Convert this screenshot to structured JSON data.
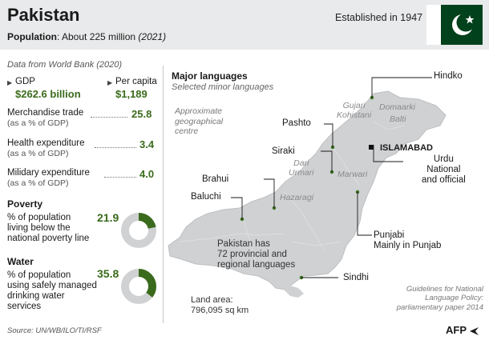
{
  "header": {
    "title": "Pakistan",
    "population_label": "Population",
    "population_value": ": About 225 million",
    "population_year": "(2021)",
    "established": "Established in 1947"
  },
  "stats": {
    "source_note": "Data from World Bank (2020)",
    "gdp_label": "GDP",
    "gdp_value": "$262.6 billion",
    "per_capita_label": "Per capita",
    "per_capita_value": "$1,189",
    "trade_label": "Merchandise trade",
    "trade_sub": "(as a % of GDP)",
    "trade_value": "25.8",
    "health_label": "Health expenditure",
    "health_sub": "(as a % of GDP)",
    "health_value": "3.4",
    "military_label": "Milidary  expenditure",
    "military_sub": "(as a % of GDP)",
    "military_value": "4.0"
  },
  "poverty": {
    "title": "Poverty",
    "line1": "% of population",
    "line2": "living below the",
    "line3": "national poverty line",
    "value": "21.9",
    "fraction": 0.219
  },
  "water": {
    "title": "Water",
    "line1": "% of population",
    "line2": "using safely managed",
    "line3": "drinking water",
    "line4": "services",
    "value": "35.8",
    "fraction": 0.358
  },
  "map": {
    "title": "Major languages",
    "subtitle": "Selected minor languages",
    "geo_centre_1": "Approximate",
    "geo_centre_2": "geographical",
    "geo_centre_3": "centre",
    "hindko": "Hindko",
    "pashto": "Pashto",
    "siraki": "Siraki",
    "islamabad": "ISLAMABAD",
    "urdu_1": "Urdu",
    "urdu_2": "National",
    "urdu_3": "and official",
    "brahui": "Brahui",
    "baluchi": "Baluchi",
    "punjabi_1": "Punjabi",
    "punjabi_2": "Mainly in Punjab",
    "sindhi": "Sindhi",
    "gujari_1": "Gujari",
    "gujari_2": "Kohistani",
    "domaarki": "Domaarki",
    "balti": "Balti",
    "dari_1": "Dari",
    "dari_2": "Urmari",
    "marwari": "Marwari",
    "hazaragi": "Hazaragi",
    "languages_1": "Pakistan has",
    "languages_2": "72 provincial and",
    "languages_3": "regional languages",
    "area_1": "Land area:",
    "area_2": "796,095 sq km",
    "guidelines_1": "Guidelines for  National",
    "guidelines_2": "Language Policy:",
    "guidelines_3": "parliamentary paper 2014"
  },
  "footer": {
    "source": "Source: UN/WB/ILO/TI/RSF",
    "logo": "AFP"
  },
  "colors": {
    "accent_green": "#3a6b1c",
    "map_fill": "#cfd1d3",
    "flag_green": "#01411c",
    "header_bg": "#e9eaeb"
  }
}
